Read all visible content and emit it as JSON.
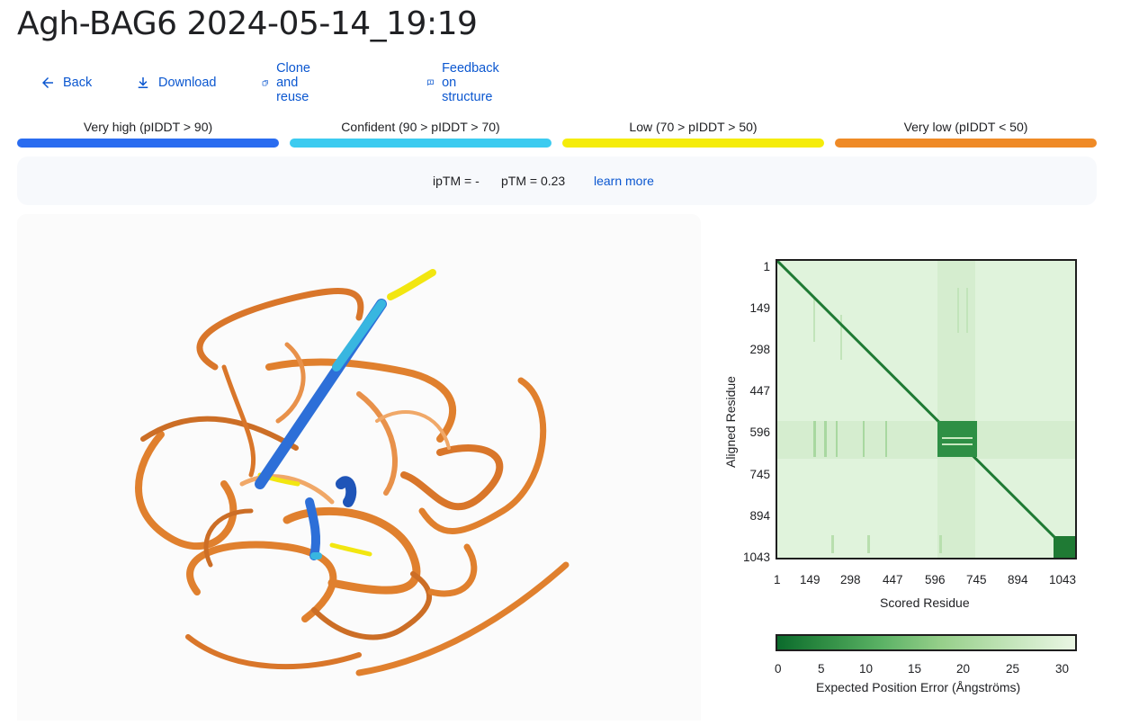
{
  "title": "Agh-BAG6 2024-05-14_19:19",
  "actions": {
    "back": "Back",
    "download": "Download",
    "clone": "Clone and reuse",
    "feedback": "Feedback on structure"
  },
  "legend": [
    {
      "label": "Very high (pIDDT > 90)",
      "color": "#2a6cf0"
    },
    {
      "label": "Confident (90 > pIDDT > 70)",
      "color": "#3ccbf0"
    },
    {
      "label": "Low (70 > pIDDT > 50)",
      "color": "#f5ec0a"
    },
    {
      "label": "Very low (pIDDT < 50)",
      "color": "#ef8a26"
    }
  ],
  "scores": {
    "iptm": "ipTM = -",
    "ptm": "pTM = 0.23",
    "learn_more": "learn more"
  },
  "pae": {
    "ticks": [
      "1",
      "149",
      "298",
      "447",
      "596",
      "745",
      "894",
      "1043"
    ],
    "xlabel": "Scored Residue",
    "ylabel": "Aligned Residue",
    "colorbar_ticks": [
      "0",
      "5",
      "10",
      "15",
      "20",
      "25",
      "30"
    ],
    "colorbar_label": "Expected Position Error (Ångströms)"
  }
}
